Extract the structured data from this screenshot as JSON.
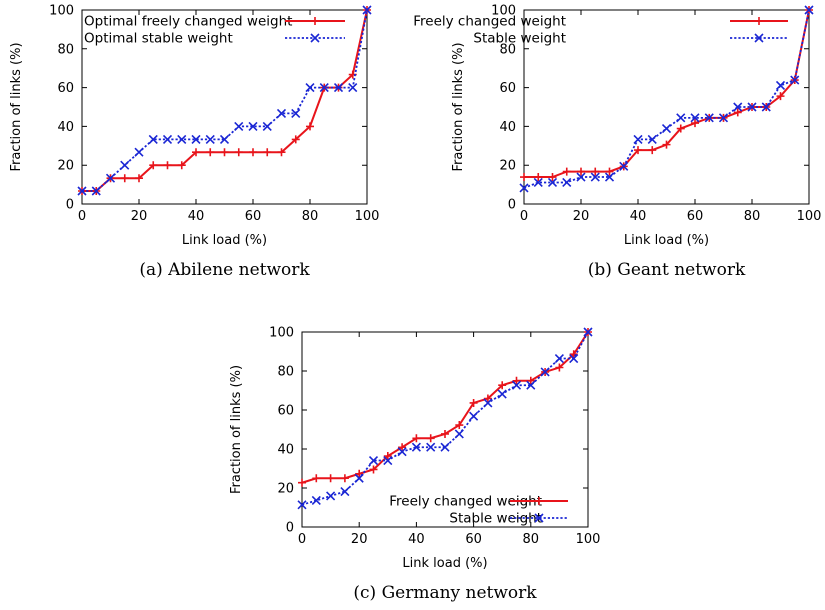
{
  "colors": {
    "freely": "#e8141b",
    "stable": "#1a26d4",
    "axis": "#000000"
  },
  "chart_data": [
    {
      "type": "line",
      "caption": "(a) Abilene network",
      "xlabel": "Link load (%)",
      "ylabel": "Fraction of links (%)",
      "xlim": [
        0,
        100
      ],
      "ylim": [
        0,
        100
      ],
      "xticks": [
        0,
        20,
        40,
        60,
        80,
        100
      ],
      "yticks": [
        0,
        20,
        40,
        60,
        80,
        100
      ],
      "legend_position": "top-left",
      "series": [
        {
          "name": "Optimal freely changed weight",
          "marker": "plus",
          "color": "#e8141b",
          "x": [
            0,
            5,
            10,
            15,
            20,
            25,
            30,
            35,
            40,
            45,
            50,
            55,
            60,
            65,
            70,
            75,
            80,
            85,
            90,
            95,
            100
          ],
          "y": [
            6.7,
            6.7,
            13.3,
            13.3,
            13.3,
            20,
            20,
            20,
            26.7,
            26.7,
            26.7,
            26.7,
            26.7,
            26.7,
            26.7,
            33.3,
            40,
            60,
            60,
            66.7,
            100
          ]
        },
        {
          "name": "Optimal stable weight",
          "marker": "cross",
          "color": "#1a26d4",
          "x": [
            0,
            5,
            10,
            15,
            20,
            25,
            30,
            35,
            40,
            45,
            50,
            55,
            60,
            65,
            70,
            75,
            80,
            85,
            90,
            95,
            100
          ],
          "y": [
            6.7,
            6.7,
            13.3,
            20,
            26.7,
            33.3,
            33.3,
            33.3,
            33.3,
            33.3,
            33.3,
            40,
            40,
            40,
            46.7,
            46.7,
            60,
            60,
            60,
            60,
            100
          ]
        }
      ]
    },
    {
      "type": "line",
      "caption": "(b) Geant network",
      "xlabel": "Link load (%)",
      "ylabel": "Fraction of links (%)",
      "xlim": [
        0,
        100
      ],
      "ylim": [
        0,
        100
      ],
      "xticks": [
        0,
        20,
        40,
        60,
        80,
        100
      ],
      "yticks": [
        0,
        20,
        40,
        60,
        80,
        100
      ],
      "legend_position": "top-right",
      "series": [
        {
          "name": "Freely changed weight",
          "marker": "plus",
          "color": "#e8141b",
          "x": [
            0,
            5,
            10,
            15,
            20,
            25,
            30,
            35,
            40,
            45,
            50,
            55,
            60,
            65,
            70,
            75,
            80,
            85,
            90,
            95,
            100
          ],
          "y": [
            13.9,
            13.9,
            13.9,
            16.7,
            16.7,
            16.7,
            16.7,
            19.4,
            27.8,
            27.8,
            30.6,
            38.9,
            41.7,
            44.4,
            44.4,
            47.2,
            50,
            50,
            55.6,
            63.9,
            100
          ]
        },
        {
          "name": "Stable weight",
          "marker": "cross",
          "color": "#1a26d4",
          "x": [
            0,
            5,
            10,
            15,
            20,
            25,
            30,
            35,
            40,
            45,
            50,
            55,
            60,
            65,
            70,
            75,
            80,
            85,
            90,
            95,
            100
          ],
          "y": [
            8.3,
            11.1,
            11.1,
            11.1,
            13.9,
            13.9,
            13.9,
            19.4,
            33.3,
            33.3,
            38.9,
            44.4,
            44.4,
            44.4,
            44.4,
            50,
            50,
            50,
            61.1,
            63.9,
            100
          ]
        }
      ]
    },
    {
      "type": "line",
      "caption": "(c) Germany network",
      "xlabel": "Link load (%)",
      "ylabel": "Fraction of links (%)",
      "xlim": [
        0,
        100
      ],
      "ylim": [
        0,
        100
      ],
      "xticks": [
        0,
        20,
        40,
        60,
        80,
        100
      ],
      "yticks": [
        0,
        20,
        40,
        60,
        80,
        100
      ],
      "legend_position": "bottom-right",
      "series": [
        {
          "name": "Freely changed weight",
          "marker": "plus",
          "color": "#e8141b",
          "x": [
            0,
            5,
            10,
            15,
            20,
            25,
            30,
            35,
            40,
            45,
            50,
            55,
            60,
            65,
            70,
            75,
            80,
            85,
            90,
            95,
            100
          ],
          "y": [
            22.7,
            25,
            25,
            25,
            27.3,
            29.5,
            36.4,
            40.9,
            45.5,
            45.5,
            47.7,
            52.3,
            63.6,
            65.9,
            72.7,
            75,
            75,
            79.5,
            81.8,
            88.6,
            100
          ]
        },
        {
          "name": "Stable weight",
          "marker": "cross",
          "color": "#1a26d4",
          "x": [
            0,
            5,
            10,
            15,
            20,
            25,
            30,
            35,
            40,
            45,
            50,
            55,
            60,
            65,
            70,
            75,
            80,
            85,
            90,
            95,
            100
          ],
          "y": [
            11.4,
            13.6,
            15.9,
            18.2,
            25,
            34.1,
            34.1,
            38.6,
            40.9,
            40.9,
            40.9,
            47.7,
            56.8,
            63.6,
            68.2,
            72.7,
            72.7,
            79.5,
            86.4,
            86.4,
            100
          ]
        }
      ]
    }
  ]
}
